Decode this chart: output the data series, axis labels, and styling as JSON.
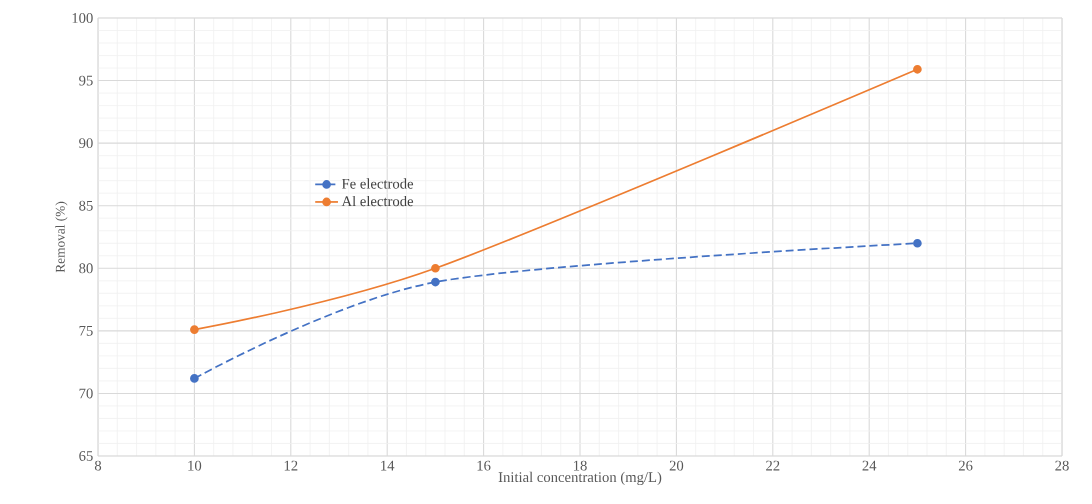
{
  "chart_data": {
    "type": "line",
    "xlabel": "Initial concentration (mg/L)",
    "ylabel": "Removal (%)",
    "x": [
      10,
      15,
      25
    ],
    "series": [
      {
        "name": "Fe electrode",
        "color": "#4472c4",
        "values": [
          71.2,
          78.9,
          82.0
        ],
        "line_style": "dashed"
      },
      {
        "name": "Al electrode",
        "color": "#ed7d31",
        "values": [
          75.1,
          80.0,
          95.9
        ],
        "line_style": "solid"
      }
    ],
    "xlim": [
      8,
      28
    ],
    "ylim": [
      65,
      100
    ],
    "xticks": [
      8,
      10,
      12,
      14,
      16,
      18,
      20,
      22,
      24,
      26,
      28
    ],
    "yticks": [
      65,
      70,
      75,
      80,
      85,
      90,
      95,
      100
    ],
    "grid": true,
    "legend": "left",
    "marker": "circle"
  }
}
